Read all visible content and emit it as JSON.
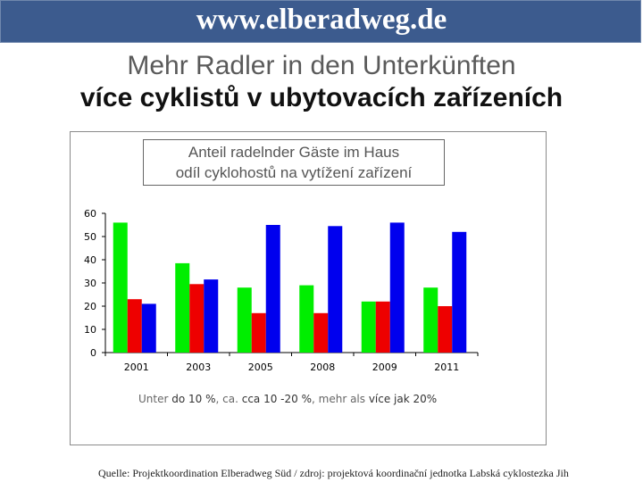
{
  "header": {
    "site": "www.elberadweg.de"
  },
  "titles": {
    "german": "Mehr Radler in den Unterkünften",
    "czech": "více cyklistů v ubytovacích zařízeních"
  },
  "chart_data": {
    "type": "bar",
    "title_line1": "Anteil radelnder Gäste im Haus",
    "title_line2": "odíl cyklohostů na vytížení zařízení",
    "categories": [
      "2001",
      "2003",
      "2005",
      "2008",
      "2009",
      "2011"
    ],
    "series": [
      {
        "name": "Unter 10 %",
        "color": "#00ee00",
        "values": [
          56,
          38.5,
          28,
          29,
          22,
          28
        ]
      },
      {
        "name": "ca. 10 -20 %",
        "color": "#ee0000",
        "values": [
          23,
          29.5,
          17,
          17,
          22,
          20
        ]
      },
      {
        "name": "mehr als 20%",
        "color": "#0000ee",
        "values": [
          21,
          31.5,
          55,
          54.5,
          56,
          52
        ]
      }
    ],
    "ylim": [
      0,
      60
    ],
    "yticks": [
      "0",
      "10",
      "20",
      "30",
      "40",
      "50",
      "60"
    ],
    "grid": false
  },
  "legend": {
    "seg1_de": "Unter ",
    "seg1_cz": "do 10 %",
    "sep1": ", ",
    "seg2_de": "ca. ",
    "seg2_cz": "cca 10 -20 %",
    "sep2": ", ",
    "seg3_de": "mehr als ",
    "seg3_cz": "více jak 20%"
  },
  "footer": {
    "source": "Quelle: Projektkoordination Elberadweg Süd / zdroj: projektová koordinační jednotka Labská cyklostezka Jih"
  }
}
